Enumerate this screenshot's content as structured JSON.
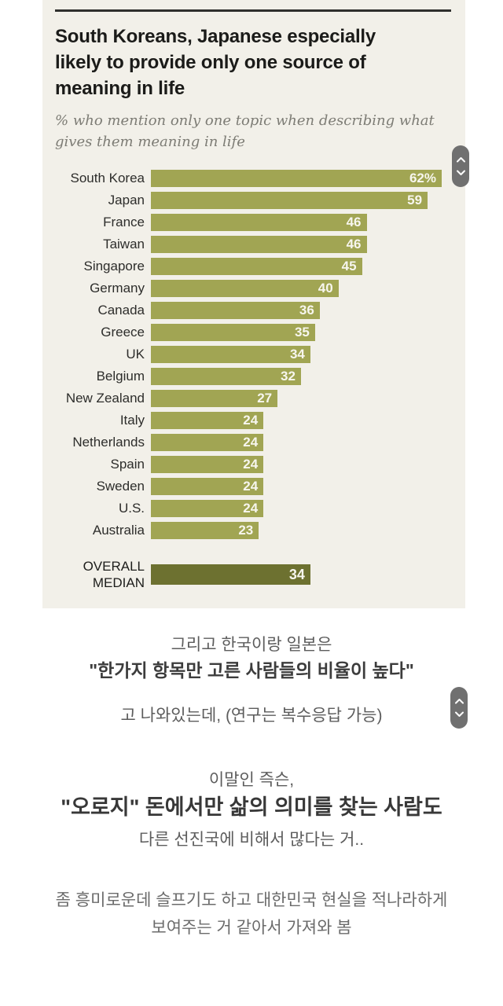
{
  "chart": {
    "title_lines": [
      "South Koreans, Japanese especially",
      "likely to provide only one source of",
      "meaning in life"
    ],
    "subtitle_lines": [
      "% who mention only one topic when describing what",
      "gives them meaning in life"
    ]
  },
  "chart_data": {
    "type": "bar",
    "orientation": "horizontal",
    "title": "South Koreans, Japanese especially likely to provide only one source of meaning in life",
    "subtitle": "% who mention only one topic when describing what gives them meaning in life",
    "categories": [
      "South Korea",
      "Japan",
      "France",
      "Taiwan",
      "Singapore",
      "Germany",
      "Canada",
      "Greece",
      "UK",
      "Belgium",
      "New Zealand",
      "Italy",
      "Netherlands",
      "Spain",
      "Sweden",
      "U.S.",
      "Australia"
    ],
    "values": [
      62,
      59,
      46,
      46,
      45,
      40,
      36,
      35,
      34,
      32,
      27,
      24,
      24,
      24,
      24,
      24,
      23
    ],
    "display_values": [
      "62%",
      "59",
      "46",
      "46",
      "45",
      "40",
      "36",
      "35",
      "34",
      "32",
      "27",
      "24",
      "24",
      "24",
      "24",
      "24",
      "23"
    ],
    "median": {
      "label_line1": "OVERALL",
      "label_line2": "MEDIAN",
      "value": 34,
      "display_value": "34"
    },
    "xlim": [
      0,
      62
    ],
    "grid": false,
    "legend": "none",
    "colors": {
      "bar": "#a1a553",
      "median_bar": "#6d7130",
      "chart_background": "#f2f0e9",
      "value_label": "#f7f6ee"
    }
  },
  "scroll_widget": {
    "up_icon": "chevron-up",
    "down_icon": "chevron-down"
  },
  "commentary": {
    "p1_line1": "그리고 한국이랑 일본은",
    "p1_line2": "\"한가지 항목만 고른 사람들의 비율이 높다\"",
    "p1_line3": "고 나와있는데, (연구는 복수응답 가능)",
    "p2_line1": "이말인 즉슨,",
    "p2_line2": "\"오로지\" 돈에서만 삶의 의미를 찾는 사람도",
    "p2_line3": "다른 선진국에 비해서 많다는 거..",
    "p3_line1": "좀 흥미로운데 슬프기도 하고 대한민국 현실을 적나라하게",
    "p3_line2": "보여주는 거 같아서 가져와 봄"
  }
}
